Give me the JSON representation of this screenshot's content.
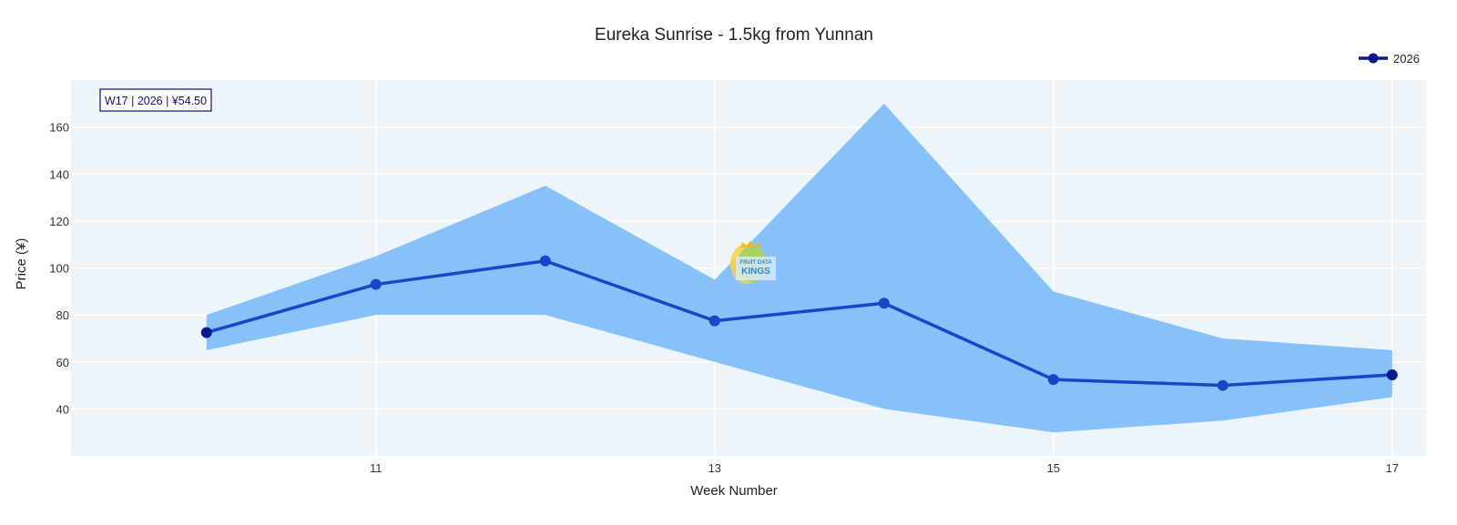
{
  "chart_data": {
    "type": "line",
    "title": "Eureka Sunrise - 1.5kg from Yunnan",
    "xlabel": "Week Number",
    "ylabel": "Price (¥)",
    "x": [
      10,
      11,
      12,
      13,
      14,
      15,
      16,
      17
    ],
    "xticks": [
      11,
      13,
      15,
      17
    ],
    "yticks": [
      40,
      60,
      80,
      100,
      120,
      140,
      160
    ],
    "xlim": [
      9.2,
      17.2
    ],
    "ylim": [
      20,
      180
    ],
    "series": [
      {
        "name": "2026",
        "values": [
          72.5,
          93,
          103,
          77.5,
          85,
          52.5,
          50,
          54.5
        ]
      }
    ],
    "band": {
      "upper": [
        80,
        105,
        135,
        95,
        170,
        90,
        70,
        65
      ],
      "lower": [
        65,
        80,
        80,
        60,
        40,
        30,
        35,
        45
      ]
    },
    "annotation": "W17 | 2026 | ¥54.50",
    "legend_position": "top-right",
    "grid": true,
    "colors": {
      "plot_bg": "#edf4fa",
      "band": "#86c1f9",
      "line": "#1747c8",
      "marker": "#0a1a8c",
      "grid": "#ffffff"
    }
  },
  "watermark": {
    "line1": "FRUIT DATA",
    "line2": "KINGS"
  }
}
